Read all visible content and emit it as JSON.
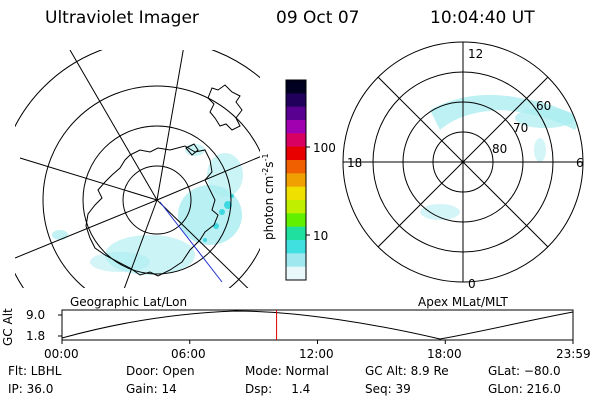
{
  "header": {
    "instrument": "Ultraviolet Imager",
    "date": "09 Oct 07",
    "time": "10:04:40 UT"
  },
  "left_panel": {
    "label": "Geographic Lat/Lon"
  },
  "right_panel": {
    "label": "Apex MLat/MLT",
    "mlt_labels": [
      "12",
      "18",
      "6",
      "0"
    ],
    "mlat_labels": [
      "60",
      "70",
      "80"
    ]
  },
  "colorbar": {
    "label": "photon cm",
    "label_sup1": "-2",
    "label_s": "s",
    "label_sup2": "-1",
    "ticks": [
      "100",
      "10"
    ],
    "colors": [
      "#000020",
      "#20005a",
      "#5a0090",
      "#a000b0",
      "#d80060",
      "#e80000",
      "#f06000",
      "#f0a000",
      "#f0e000",
      "#c0f000",
      "#60f000",
      "#20e0a0",
      "#40e0e0",
      "#a0e8f0",
      "#e8f8fb"
    ]
  },
  "altitude_plot": {
    "ylabel": "GC Alt",
    "y_ticks": [
      "9.0",
      "1.8"
    ],
    "x_ticks": [
      "00:00",
      "06:00",
      "12:00",
      "18:00",
      "23:59"
    ],
    "current_time_fraction": 0.4199
  },
  "info": {
    "flt": "Flt: LBHL",
    "ip": "IP: 36.0",
    "door": "Door: Open",
    "gain": "Gain: 14",
    "mode": "Mode: Normal",
    "dsp": "Dsp:     1.4",
    "gcalt": "GC Alt: 8.9 Re",
    "seq": "Seq: 39",
    "glat": "GLat: −80.0",
    "glon": "GLon: 216.0"
  }
}
